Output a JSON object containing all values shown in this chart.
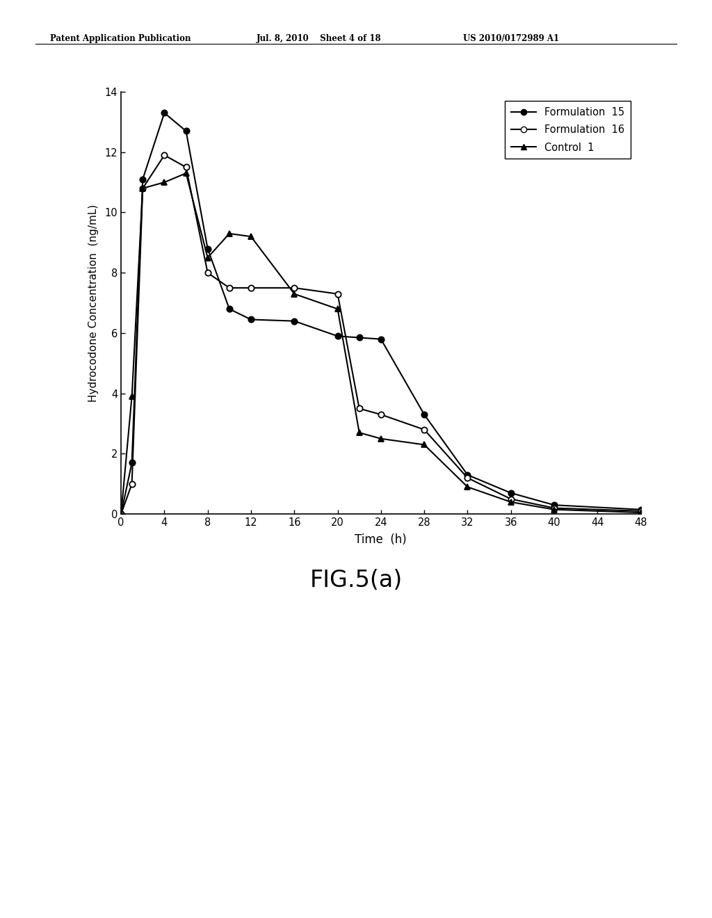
{
  "title": "FIG.5(a)",
  "xlabel": "Time  (h)",
  "ylabel": "Hydrocodone Concentration  (ng/mL)",
  "background_color": "#ffffff",
  "header_left": "Patent Application Publication",
  "header_mid": "Jul. 8, 2010    Sheet 4 of 18",
  "header_right": "US 2010/0172989 A1",
  "xlim": [
    0,
    48
  ],
  "ylim": [
    0,
    14
  ],
  "xticks": [
    0,
    4,
    8,
    12,
    16,
    20,
    24,
    28,
    32,
    36,
    40,
    44,
    48
  ],
  "yticks": [
    0,
    2,
    4,
    6,
    8,
    10,
    12,
    14
  ],
  "series": [
    {
      "label": "Formulation  15",
      "marker": "circle_filled",
      "color": "#000000",
      "x": [
        0,
        1,
        2,
        4,
        6,
        8,
        10,
        12,
        16,
        20,
        22,
        24,
        28,
        32,
        36,
        40,
        48
      ],
      "y": [
        0,
        1.7,
        11.1,
        13.3,
        12.7,
        8.8,
        6.8,
        6.45,
        6.4,
        5.9,
        5.85,
        5.8,
        3.3,
        1.3,
        0.7,
        0.3,
        0.15
      ]
    },
    {
      "label": "Formulation  16",
      "marker": "circle_open",
      "color": "#000000",
      "x": [
        0,
        1,
        2,
        4,
        6,
        8,
        10,
        12,
        16,
        20,
        22,
        24,
        28,
        32,
        36,
        40,
        48
      ],
      "y": [
        0,
        1.0,
        10.8,
        11.9,
        11.5,
        8.0,
        7.5,
        7.5,
        7.5,
        7.3,
        3.5,
        3.3,
        2.8,
        1.2,
        0.5,
        0.2,
        0.1
      ]
    },
    {
      "label": "Control  1",
      "marker": "triangle_filled",
      "color": "#000000",
      "x": [
        0,
        1,
        2,
        4,
        6,
        8,
        10,
        12,
        16,
        20,
        22,
        24,
        28,
        32,
        36,
        40,
        48
      ],
      "y": [
        0,
        3.9,
        10.8,
        11.0,
        11.3,
        8.5,
        9.3,
        9.2,
        7.3,
        6.8,
        2.7,
        2.5,
        2.3,
        0.9,
        0.4,
        0.15,
        0.05
      ]
    }
  ]
}
